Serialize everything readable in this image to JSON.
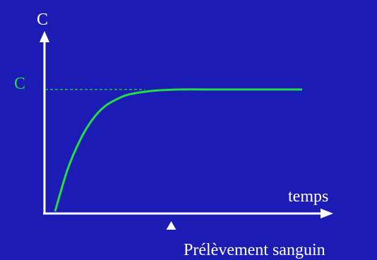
{
  "colors": {
    "background": "#1c1cb4",
    "axis": "#ffffff",
    "curve": "#22dd44",
    "level_label": "#22dd44"
  },
  "chart_data": {
    "type": "line",
    "title": "",
    "xlabel": "temps",
    "ylabel": "C",
    "level_line": {
      "label": "C",
      "style": "dashed"
    },
    "series": [
      {
        "x": [
          0.0,
          0.05,
          0.1,
          0.15,
          0.2,
          0.25,
          0.3,
          0.4,
          0.5,
          0.6,
          0.7,
          0.8,
          1.0
        ],
        "y": [
          0.0,
          0.34,
          0.58,
          0.75,
          0.86,
          0.92,
          0.96,
          0.99,
          1.0,
          1.0,
          1.0,
          1.0,
          1.0
        ]
      }
    ],
    "annotation": {
      "text": "Prélèvement sanguin",
      "marker": "triangle-up",
      "x": 0.47
    },
    "xlim": [
      0,
      1.0
    ],
    "ylim": [
      0,
      1.0
    ],
    "grid": false,
    "legend": "none"
  }
}
